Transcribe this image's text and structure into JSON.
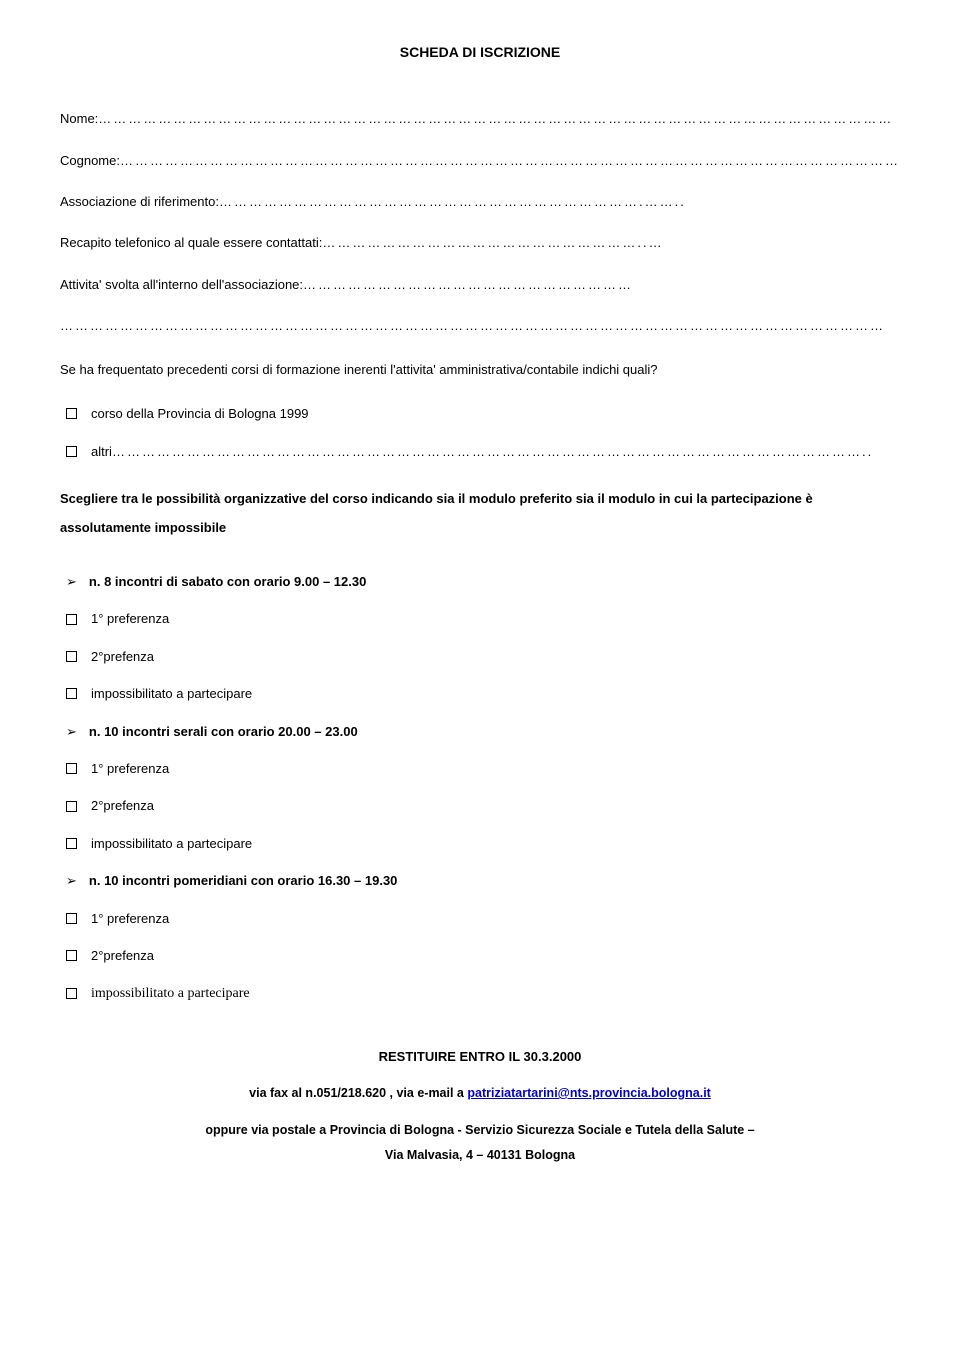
{
  "title": "SCHEDA DI ISCRIZIONE",
  "fields": {
    "nome_label": "Nome:",
    "cognome_label": "Cognome:",
    "assoc_label": "Associazione di riferimento:",
    "recapito_label": "Recapito telefonico al quale essere contattati:",
    "attivita_label": "Attivita' svolta all'interno dell'associazione:"
  },
  "question_text": "Se ha frequentato precedenti corsi di formazione inerenti l'attivita' amministrativa/contabile indichi quali?",
  "prev_courses": {
    "item1": "corso della Provincia di Bologna 1999",
    "item2": "altri"
  },
  "instruction_text": "Scegliere tra le possibilità organizzative del corso indicando sia il modulo preferito sia il modulo in cui la partecipazione è assolutamente impossibile",
  "options": {
    "opt1": {
      "heading": "n. 8 incontri di sabato con orario 9.00 – 12.30",
      "c1": "1° preferenza",
      "c2": "2°prefenza",
      "c3": "impossibilitato a partecipare"
    },
    "opt2": {
      "heading": "n. 10 incontri serali con orario 20.00 – 23.00",
      "c1": "1° preferenza",
      "c2": "2°prefenza",
      "c3": "impossibilitato a partecipare"
    },
    "opt3": {
      "heading": "n. 10 incontri pomeridiani con orario 16.30 – 19.30",
      "c1": "1° preferenza",
      "c2": "2°prefenza",
      "c3": "impossibilitato a partecipare"
    }
  },
  "footer": {
    "return_by": "RESTITUIRE  ENTRO IL 30.3.2000",
    "fax_prefix": "via fax  al n.",
    "fax_number": "051/218.620",
    "email_prefix": " , via e-mail a ",
    "email": "patriziatartarini@nts.provincia.bologna.it",
    "postal_line1": "oppure via postale a Provincia di Bologna - Servizio Sicurezza Sociale e Tutela della Salute –",
    "postal_line2": "Via Malvasia, 4 – 40131 Bologna"
  },
  "dots_long": "……………………………………………………………………………………………………………………………………………",
  "dots_med": "………………………………………………………………………….……..",
  "dots_short": "………………………………………………………..…",
  "dots_attivita": "…………………………………………………………",
  "dots_cont": "…………………………………………………………………………………………………………………………………………………",
  "dots_altri": "…………………………………………………………………………………………………………………………………….."
}
